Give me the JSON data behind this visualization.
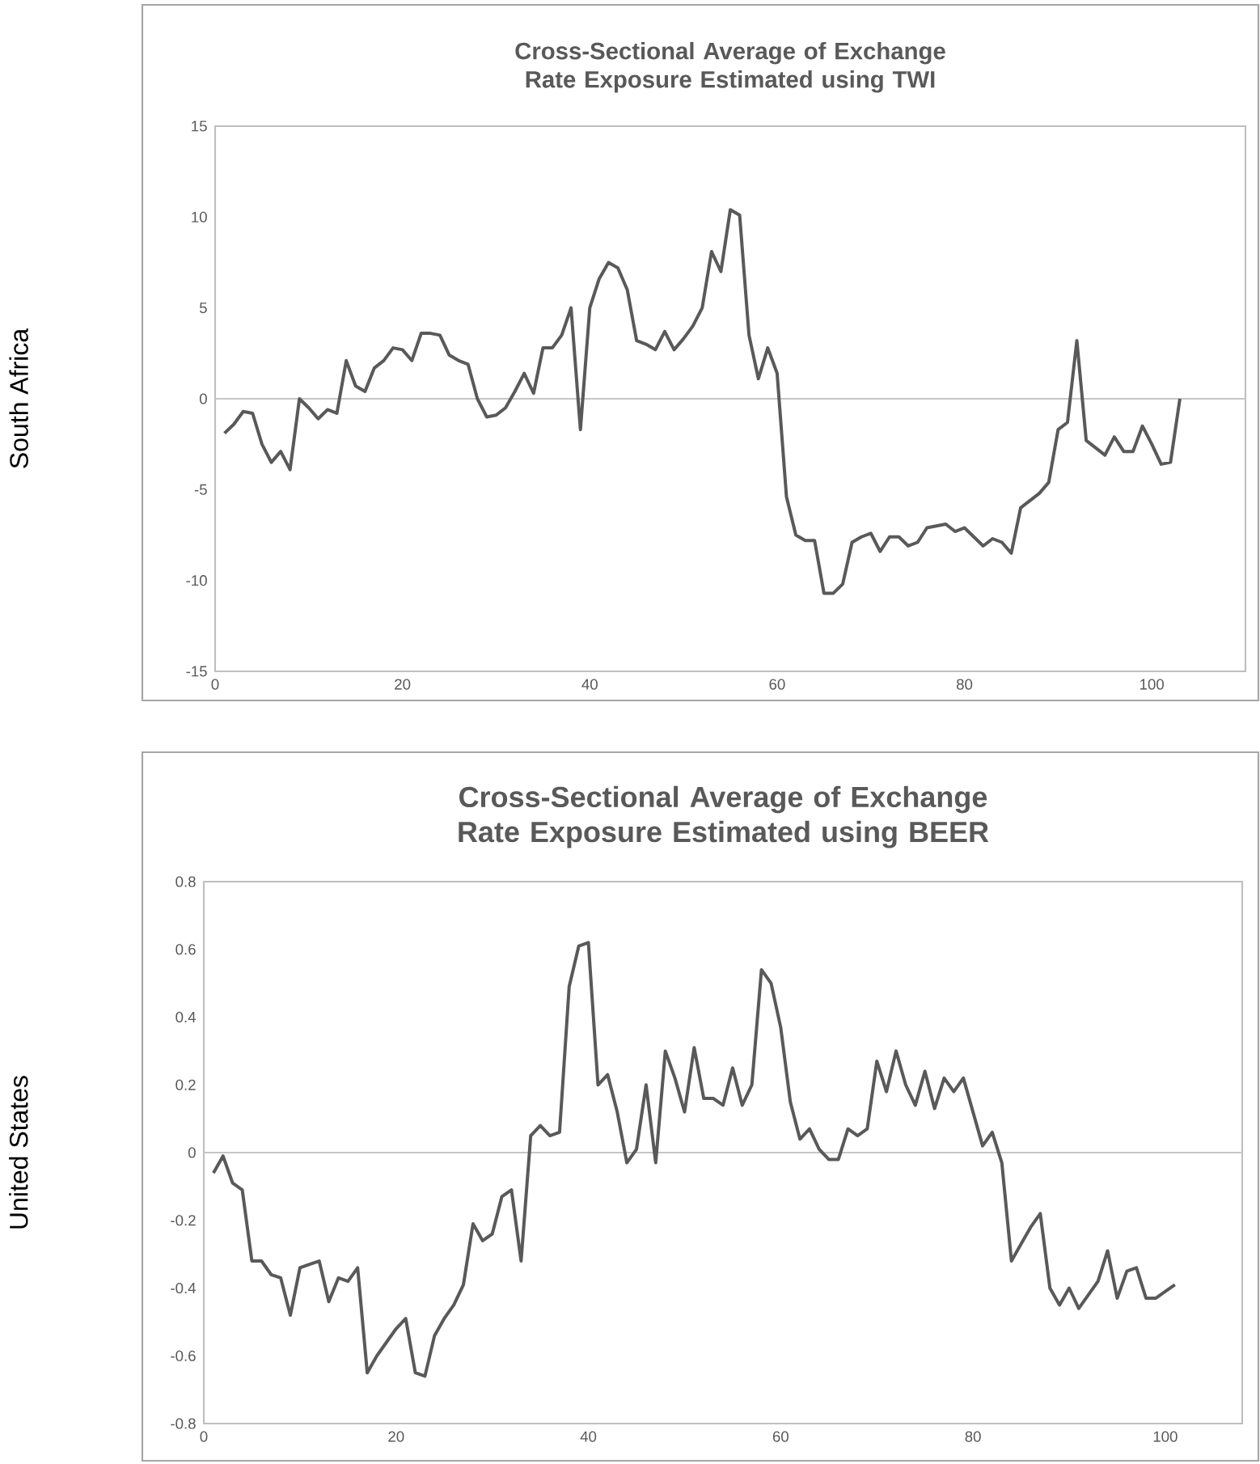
{
  "chart_data": [
    {
      "type": "line",
      "title": "Cross-Sectional Average of Exchange Rate Exposure Estimated using TWI",
      "ylabel": "South Africa",
      "color": "#595959",
      "x": [
        1,
        2,
        3,
        4,
        5,
        6,
        7,
        8,
        9,
        10,
        11,
        12,
        13,
        14,
        15,
        16,
        17,
        18,
        19,
        20,
        21,
        22,
        23,
        24,
        25,
        26,
        27,
        28,
        29,
        30,
        31,
        32,
        33,
        34,
        35,
        36,
        37,
        38,
        39,
        40,
        41,
        42,
        43,
        44,
        45,
        46,
        47,
        48,
        49,
        50,
        51,
        52,
        53,
        54,
        55,
        56,
        57,
        58,
        59,
        60,
        61,
        62,
        63,
        64,
        65,
        66,
        67,
        68,
        69,
        70,
        71,
        72,
        73,
        74,
        75,
        76,
        77,
        78,
        79,
        80,
        81,
        82,
        83,
        84,
        85,
        86,
        87,
        88,
        89,
        90,
        91,
        92,
        93,
        94,
        95,
        96,
        97,
        98,
        99,
        100,
        101,
        102,
        103
      ],
      "values": [
        -1.9,
        -1.4,
        -0.7,
        -0.8,
        -2.5,
        -3.5,
        -2.9,
        -3.9,
        0,
        -0.5,
        -1.1,
        -0.6,
        -0.8,
        2.1,
        0.7,
        0.4,
        1.7,
        2.1,
        2.8,
        2.7,
        2.1,
        3.6,
        3.6,
        3.5,
        2.4,
        2.1,
        1.9,
        0,
        -1,
        -0.9,
        -0.5,
        0.4,
        1.4,
        0.3,
        2.8,
        2.8,
        3.5,
        5,
        -1.7,
        5,
        6.6,
        7.5,
        7.2,
        6,
        3.2,
        3,
        2.7,
        3.7,
        2.7,
        3.3,
        4,
        5,
        8.1,
        7,
        10.4,
        10.1,
        3.5,
        1.1,
        2.8,
        1.4,
        -5.4,
        -7.5,
        -7.8,
        -7.8,
        -10.7,
        -10.7,
        -10.2,
        -7.9,
        -7.6,
        -7.4,
        -8.4,
        -7.6,
        -7.6,
        -8.1,
        -7.9,
        -7.1,
        -7,
        -6.9,
        -7.3,
        -7.1,
        -7.6,
        -8.1,
        -7.7,
        -7.9,
        -8.5,
        -6,
        -5.6,
        -5.2,
        -4.6,
        -1.7,
        -1.3,
        3.2,
        -2.3,
        -2.7,
        -3.1,
        -2.1,
        -2.9,
        -2.9,
        -1.5,
        -2.5,
        -3.6,
        -3.5,
        0
      ],
      "xlim": [
        0,
        110
      ],
      "ylim": [
        -15,
        15
      ],
      "xticks": [
        0,
        20,
        40,
        60,
        80,
        100
      ],
      "yticks": [
        -15,
        -10,
        -5,
        0,
        5,
        10,
        15
      ]
    },
    {
      "type": "line",
      "title": "Cross-Sectional Average of Exchange Rate Exposure Estimated using BEER",
      "ylabel": "United States",
      "color": "#595959",
      "x": [
        1,
        2,
        3,
        4,
        5,
        6,
        7,
        8,
        9,
        10,
        11,
        12,
        13,
        14,
        15,
        16,
        17,
        18,
        19,
        20,
        21,
        22,
        23,
        24,
        25,
        26,
        27,
        28,
        29,
        30,
        31,
        32,
        33,
        34,
        35,
        36,
        37,
        38,
        39,
        40,
        41,
        42,
        43,
        44,
        45,
        46,
        47,
        48,
        49,
        50,
        51,
        52,
        53,
        54,
        55,
        56,
        57,
        58,
        59,
        60,
        61,
        62,
        63,
        64,
        65,
        66,
        67,
        68,
        69,
        70,
        71,
        72,
        73,
        74,
        75,
        76,
        77,
        78,
        79,
        80,
        81,
        82,
        83,
        84,
        85,
        86,
        87,
        88,
        89,
        90,
        91,
        92,
        93,
        94,
        95,
        96,
        97,
        98,
        99,
        100,
        101
      ],
      "values": [
        -0.06,
        -0.01,
        -0.09,
        -0.11,
        -0.32,
        -0.32,
        -0.36,
        -0.37,
        -0.48,
        -0.34,
        -0.33,
        -0.32,
        -0.44,
        -0.37,
        -0.38,
        -0.34,
        -0.65,
        -0.6,
        -0.56,
        -0.52,
        -0.49,
        -0.65,
        -0.66,
        -0.54,
        -0.49,
        -0.45,
        -0.39,
        -0.21,
        -0.26,
        -0.24,
        -0.13,
        -0.11,
        -0.32,
        0.05,
        0.08,
        0.05,
        0.06,
        0.49,
        0.61,
        0.62,
        0.2,
        0.23,
        0.12,
        -0.03,
        0.01,
        0.2,
        -0.03,
        0.3,
        0.22,
        0.12,
        0.31,
        0.16,
        0.16,
        0.14,
        0.25,
        0.14,
        0.2,
        0.54,
        0.5,
        0.37,
        0.15,
        0.04,
        0.07,
        0.01,
        -0.02,
        -0.02,
        0.07,
        0.05,
        0.07,
        0.27,
        0.18,
        0.3,
        0.2,
        0.14,
        0.24,
        0.13,
        0.22,
        0.18,
        0.22,
        0.12,
        0.02,
        0.06,
        -0.03,
        -0.32,
        -0.27,
        -0.22,
        -0.18,
        -0.4,
        -0.45,
        -0.4,
        -0.46,
        -0.42,
        -0.38,
        -0.29,
        -0.43,
        -0.35,
        -0.34,
        -0.43,
        -0.43,
        -0.41,
        -0.39
      ],
      "xlim": [
        0,
        108
      ],
      "ylim": [
        -0.8,
        0.8
      ],
      "xticks": [
        0,
        20,
        40,
        60,
        80,
        100
      ],
      "yticks": [
        -0.8,
        -0.6,
        -0.4,
        -0.2,
        0,
        0.2,
        0.4,
        0.6,
        0.8
      ]
    }
  ]
}
